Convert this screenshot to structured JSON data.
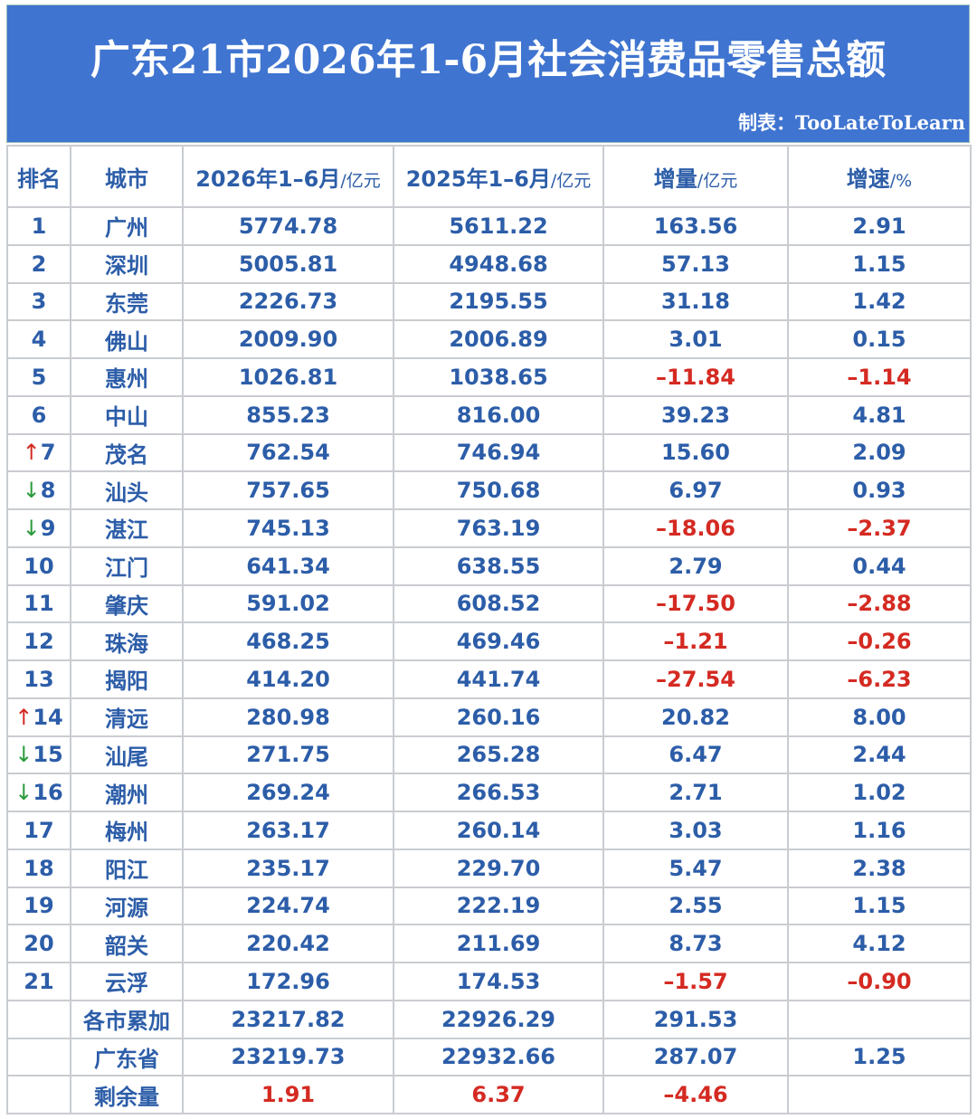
{
  "header": {
    "title": "广东21市2026年1-6月社会消费品零售总额",
    "credit": "制表：TooLateToLearn"
  },
  "table": {
    "columns": [
      {
        "text": "排名"
      },
      {
        "text": "城市"
      },
      {
        "text": "2026年1–6月",
        "unit": "/亿元"
      },
      {
        "text": "2025年1–6月",
        "unit": "/亿元"
      },
      {
        "text": "增量",
        "unit": "/亿元"
      },
      {
        "text": "增速",
        "unit": "/%"
      }
    ],
    "rows": [
      {
        "cells": [
          "1",
          "广州",
          "5774.78",
          "5611.22",
          "163.56",
          "2.91"
        ]
      },
      {
        "cells": [
          "2",
          "深圳",
          "5005.81",
          "4948.68",
          "57.13",
          "1.15"
        ]
      },
      {
        "cells": [
          "3",
          "东莞",
          "2226.73",
          "2195.55",
          "31.18",
          "1.42"
        ]
      },
      {
        "cells": [
          "4",
          "佛山",
          "2009.90",
          "2006.89",
          "3.01",
          "0.15"
        ]
      },
      {
        "cells": [
          "5",
          "惠州",
          "1026.81",
          "1038.65",
          "–11.84",
          "–1.14"
        ]
      },
      {
        "cells": [
          "6",
          "中山",
          "855.23",
          "816.00",
          "39.23",
          "4.81"
        ]
      },
      {
        "arrow": "↑",
        "cells": [
          "7",
          "茂名",
          "762.54",
          "746.94",
          "15.60",
          "2.09"
        ]
      },
      {
        "arrow": "↓",
        "cells": [
          "8",
          "汕头",
          "757.65",
          "750.68",
          "6.97",
          "0.93"
        ]
      },
      {
        "arrow": "↓",
        "cells": [
          "9",
          "湛江",
          "745.13",
          "763.19",
          "–18.06",
          "–2.37"
        ]
      },
      {
        "cells": [
          "10",
          "江门",
          "641.34",
          "638.55",
          "2.79",
          "0.44"
        ]
      },
      {
        "cells": [
          "11",
          "肇庆",
          "591.02",
          "608.52",
          "–17.50",
          "–2.88"
        ]
      },
      {
        "cells": [
          "12",
          "珠海",
          "468.25",
          "469.46",
          "–1.21",
          "–0.26"
        ]
      },
      {
        "cells": [
          "13",
          "揭阳",
          "414.20",
          "441.74",
          "–27.54",
          "–6.23"
        ]
      },
      {
        "arrow": "↑",
        "cells": [
          "14",
          "清远",
          "280.98",
          "260.16",
          "20.82",
          "8.00"
        ]
      },
      {
        "arrow": "↓",
        "cells": [
          "15",
          "汕尾",
          "271.75",
          "265.28",
          "6.47",
          "2.44"
        ]
      },
      {
        "arrow": "↓",
        "cells": [
          "16",
          "潮州",
          "269.24",
          "266.53",
          "2.71",
          "1.02"
        ]
      },
      {
        "cells": [
          "17",
          "梅州",
          "263.17",
          "260.14",
          "3.03",
          "1.16"
        ]
      },
      {
        "cells": [
          "18",
          "阳江",
          "235.17",
          "229.70",
          "5.47",
          "2.38"
        ]
      },
      {
        "cells": [
          "19",
          "河源",
          "224.74",
          "222.19",
          "2.55",
          "1.15"
        ]
      },
      {
        "cells": [
          "20",
          "韶关",
          "220.42",
          "211.69",
          "8.73",
          "4.12"
        ]
      },
      {
        "cells": [
          "21",
          "云浮",
          "172.96",
          "174.53",
          "–1.57",
          "–0.90"
        ]
      },
      {
        "cells": [
          null,
          "各市累加",
          "23217.82",
          "22926.29",
          "291.53",
          null
        ]
      },
      {
        "cells": [
          null,
          "广东省",
          "23219.73",
          "22932.66",
          "287.07",
          "1.25"
        ]
      },
      {
        "color": "#d42a22",
        "cells": [
          null,
          "剩余量",
          "1.91",
          "6.37",
          "–4.46",
          null
        ]
      }
    ]
  }
}
